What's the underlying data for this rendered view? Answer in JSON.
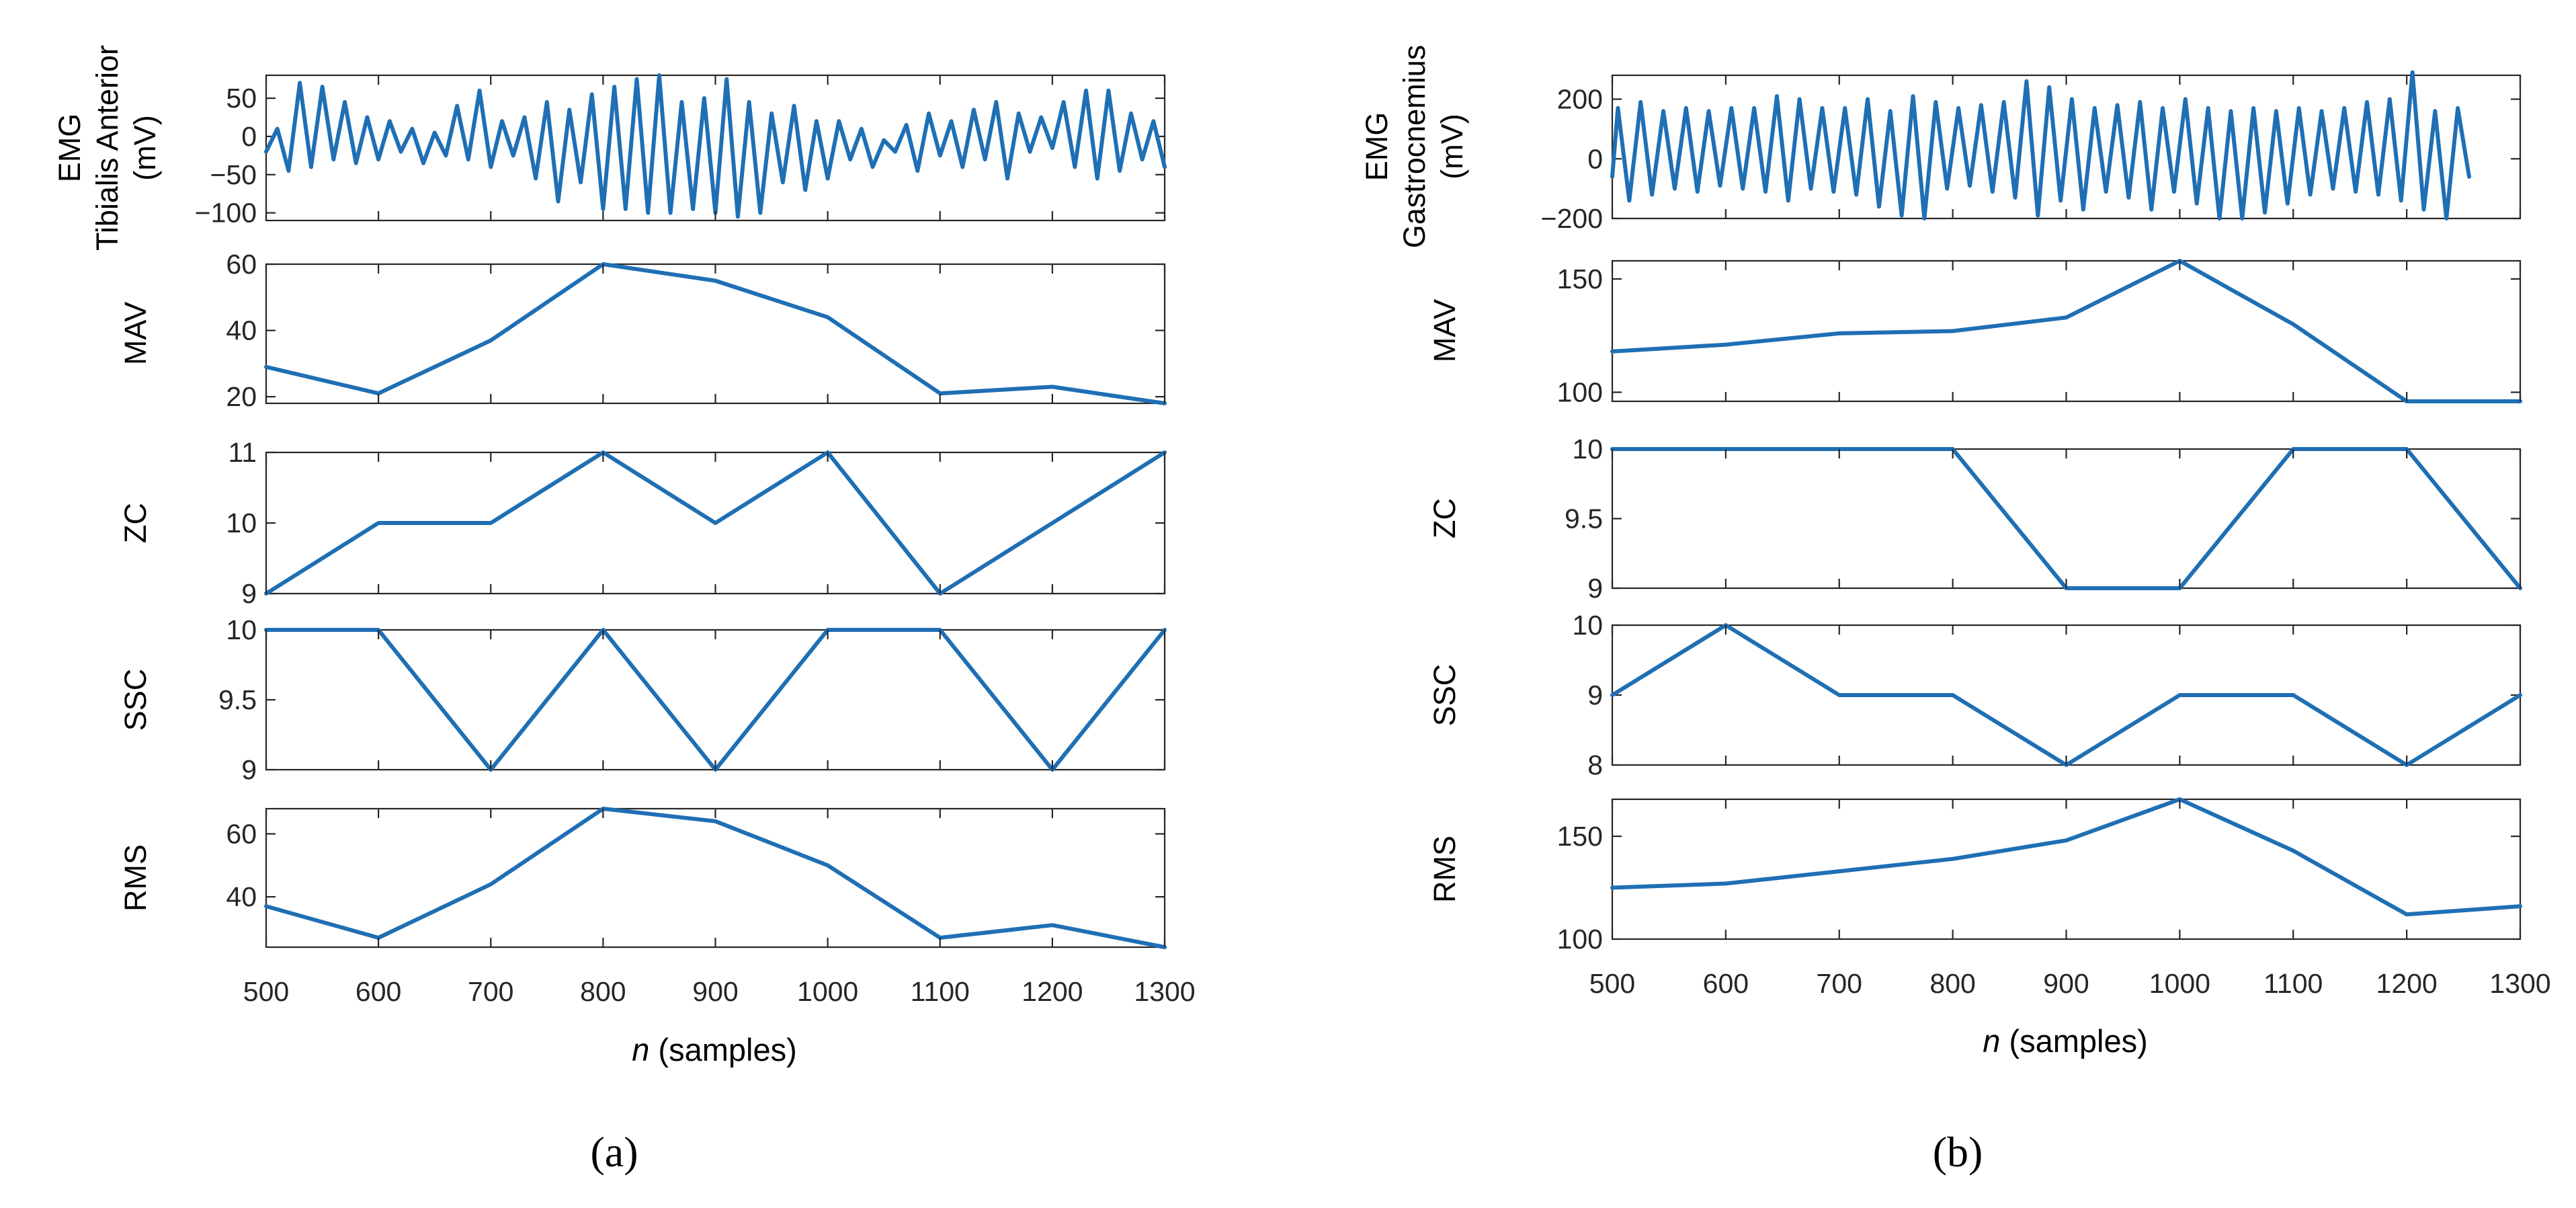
{
  "colors": {
    "line": "#1f6fb4",
    "axis": "#262626"
  },
  "chart_data": [
    {
      "type": "line",
      "panel": "a",
      "caption": "(a)",
      "xlabel": {
        "var": "n",
        "unit": " (samples)"
      },
      "xlim": [
        500,
        1300
      ],
      "xticks": [
        500,
        600,
        700,
        800,
        900,
        1000,
        1100,
        1200,
        1300
      ],
      "xtick_labels": [
        "500",
        "600",
        "700",
        "800",
        "900",
        "1000",
        "1100",
        "1200",
        "1300"
      ],
      "subplots": [
        {
          "key": "emg",
          "ylabel_lines": [
            "EMG",
            "Tibialis Anterior",
            "(mV)"
          ],
          "ylim": [
            -110,
            80
          ],
          "yticks": [
            50,
            0,
            -50,
            -100
          ],
          "ytick_labels": [
            "50",
            "0",
            "−50",
            "−100"
          ],
          "x": [
            500,
            510,
            520,
            530,
            540,
            550,
            560,
            570,
            580,
            590,
            600,
            610,
            620,
            630,
            640,
            650,
            660,
            670,
            680,
            690,
            700,
            710,
            720,
            730,
            740,
            750,
            760,
            770,
            780,
            790,
            800,
            810,
            820,
            830,
            840,
            850,
            860,
            870,
            880,
            890,
            900,
            910,
            920,
            930,
            940,
            950,
            960,
            970,
            980,
            990,
            1000,
            1010,
            1020,
            1030,
            1040,
            1050,
            1060,
            1070,
            1080,
            1090,
            1100,
            1110,
            1120,
            1130,
            1140,
            1150,
            1160,
            1170,
            1180,
            1190,
            1200,
            1210,
            1220,
            1230,
            1240,
            1250,
            1260,
            1270,
            1280,
            1290,
            1300
          ],
          "y": [
            -20,
            10,
            -45,
            70,
            -40,
            65,
            -30,
            45,
            -35,
            25,
            -30,
            20,
            -20,
            10,
            -35,
            5,
            -25,
            40,
            -30,
            60,
            -40,
            20,
            -25,
            25,
            -55,
            45,
            -85,
            35,
            -60,
            55,
            -95,
            65,
            -95,
            75,
            -100,
            80,
            -100,
            45,
            -95,
            50,
            -100,
            75,
            -105,
            45,
            -100,
            30,
            -60,
            40,
            -70,
            20,
            -55,
            20,
            -30,
            10,
            -40,
            -5,
            -20,
            15,
            -45,
            30,
            -25,
            20,
            -40,
            35,
            -30,
            45,
            -55,
            30,
            -20,
            25,
            -15,
            45,
            -40,
            60,
            -55,
            60,
            -45,
            30,
            -30,
            20,
            -40
          ],
          "series_name": "EMG Tibialis Anterior"
        },
        {
          "key": "mav",
          "ylabel_lines": [
            "MAV"
          ],
          "ylim": [
            18,
            60
          ],
          "yticks": [
            60,
            40,
            20
          ],
          "ytick_labels": [
            "60",
            "40",
            "20"
          ],
          "x": [
            500,
            600,
            700,
            800,
            900,
            1000,
            1100,
            1200,
            1300
          ],
          "y": [
            29,
            21,
            37,
            60,
            55,
            44,
            21,
            23,
            18
          ],
          "series_name": "MAV"
        },
        {
          "key": "zc",
          "ylabel_lines": [
            "ZC"
          ],
          "ylim": [
            9,
            11
          ],
          "yticks": [
            11,
            10,
            9
          ],
          "ytick_labels": [
            "11",
            "10",
            "9"
          ],
          "x": [
            500,
            600,
            700,
            800,
            900,
            1000,
            1100,
            1200,
            1300
          ],
          "y": [
            9,
            10,
            10,
            11,
            10,
            11,
            9,
            10,
            11
          ],
          "series_name": "ZC"
        },
        {
          "key": "ssc",
          "ylabel_lines": [
            "SSC"
          ],
          "ylim": [
            9,
            10
          ],
          "yticks": [
            10,
            9.5,
            9
          ],
          "ytick_labels": [
            "10",
            "9.5",
            "9"
          ],
          "x": [
            500,
            600,
            700,
            800,
            900,
            1000,
            1100,
            1200,
            1300
          ],
          "y": [
            10,
            10,
            9,
            10,
            9,
            10,
            10,
            9,
            10
          ],
          "series_name": "SSC"
        },
        {
          "key": "rms",
          "ylabel_lines": [
            "RMS"
          ],
          "ylim": [
            24,
            68
          ],
          "yticks": [
            60,
            40
          ],
          "ytick_labels": [
            "60",
            "40"
          ],
          "x": [
            500,
            600,
            700,
            800,
            900,
            1000,
            1100,
            1200,
            1300
          ],
          "y": [
            37,
            27,
            44,
            68,
            64,
            50,
            27,
            31,
            24
          ],
          "series_name": "RMS"
        }
      ]
    },
    {
      "type": "line",
      "panel": "b",
      "caption": "(b)",
      "xlabel": {
        "var": "n",
        "unit": " (samples)"
      },
      "xlim": [
        500,
        1300
      ],
      "xticks": [
        500,
        600,
        700,
        800,
        900,
        1000,
        1100,
        1200,
        1300
      ],
      "xtick_labels": [
        "500",
        "600",
        "700",
        "800",
        "900",
        "1000",
        "1100",
        "1200",
        "1300"
      ],
      "subplots": [
        {
          "key": "emg",
          "ylabel_lines": [
            "EMG",
            "Gastrocnemius",
            "(mV)"
          ],
          "ylim": [
            -200,
            280
          ],
          "yticks": [
            200,
            0,
            -200
          ],
          "ytick_labels": [
            "200",
            "0",
            "−200"
          ],
          "x": [
            500,
            505,
            515,
            525,
            535,
            545,
            555,
            565,
            575,
            585,
            595,
            605,
            615,
            625,
            635,
            645,
            655,
            665,
            675,
            685,
            695,
            705,
            715,
            725,
            735,
            745,
            755,
            765,
            775,
            785,
            795,
            805,
            815,
            825,
            835,
            845,
            855,
            865,
            875,
            885,
            895,
            905,
            915,
            925,
            935,
            945,
            955,
            965,
            975,
            985,
            995,
            1005,
            1015,
            1025,
            1035,
            1045,
            1055,
            1065,
            1075,
            1085,
            1095,
            1105,
            1115,
            1125,
            1135,
            1145,
            1155,
            1165,
            1175,
            1185,
            1195,
            1205,
            1215,
            1225,
            1235,
            1245,
            1255
          ],
          "y": [
            -60,
            170,
            -140,
            190,
            -120,
            160,
            -100,
            170,
            -110,
            160,
            -90,
            170,
            -100,
            170,
            -110,
            210,
            -140,
            200,
            -100,
            170,
            -110,
            170,
            -120,
            200,
            -160,
            160,
            -190,
            210,
            -200,
            190,
            -100,
            170,
            -90,
            180,
            -110,
            190,
            -130,
            260,
            -190,
            240,
            -140,
            200,
            -170,
            170,
            -110,
            180,
            -130,
            190,
            -170,
            170,
            -110,
            200,
            -150,
            170,
            -200,
            160,
            -200,
            170,
            -180,
            160,
            -150,
            170,
            -120,
            160,
            -100,
            170,
            -110,
            190,
            -120,
            200,
            -140,
            290,
            -170,
            160,
            -200,
            170,
            -60
          ],
          "series_name": "EMG Gastrocnemius"
        },
        {
          "key": "mav",
          "ylabel_lines": [
            "MAV"
          ],
          "ylim": [
            96,
            158
          ],
          "yticks": [
            150,
            100
          ],
          "ytick_labels": [
            "150",
            "100"
          ],
          "x": [
            500,
            600,
            700,
            800,
            900,
            1000,
            1100,
            1200,
            1300
          ],
          "y": [
            118,
            121,
            126,
            127,
            133,
            158,
            130,
            96,
            96
          ],
          "series_name": "MAV"
        },
        {
          "key": "zc",
          "ylabel_lines": [
            "ZC"
          ],
          "ylim": [
            9,
            10
          ],
          "yticks": [
            10,
            9.5,
            9
          ],
          "ytick_labels": [
            "10",
            "9.5",
            "9"
          ],
          "x": [
            500,
            600,
            700,
            800,
            900,
            1000,
            1100,
            1200,
            1300
          ],
          "y": [
            10,
            10,
            10,
            10,
            9,
            9,
            10,
            10,
            9
          ],
          "series_name": "ZC"
        },
        {
          "key": "ssc",
          "ylabel_lines": [
            "SSC"
          ],
          "ylim": [
            8,
            10
          ],
          "yticks": [
            10,
            9,
            8
          ],
          "ytick_labels": [
            "10",
            "9",
            "8"
          ],
          "x": [
            500,
            600,
            700,
            800,
            900,
            1000,
            1100,
            1200,
            1300
          ],
          "y": [
            9,
            10,
            9,
            9,
            8,
            9,
            9,
            8,
            9
          ],
          "series_name": "SSC"
        },
        {
          "key": "rms",
          "ylabel_lines": [
            "RMS"
          ],
          "ylim": [
            100,
            168
          ],
          "yticks": [
            150,
            100
          ],
          "ytick_labels": [
            "150",
            "100"
          ],
          "x": [
            500,
            600,
            700,
            800,
            900,
            1000,
            1100,
            1200,
            1300
          ],
          "y": [
            125,
            127,
            133,
            139,
            148,
            168,
            143,
            112,
            116
          ],
          "series_name": "RMS"
        }
      ]
    }
  ]
}
